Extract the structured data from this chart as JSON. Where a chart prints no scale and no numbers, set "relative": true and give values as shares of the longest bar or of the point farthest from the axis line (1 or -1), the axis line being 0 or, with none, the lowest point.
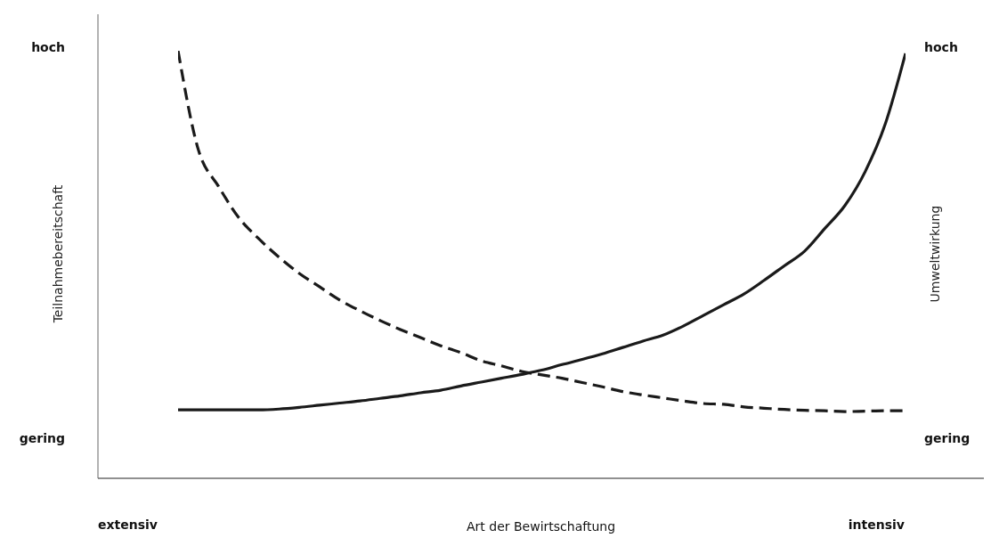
{
  "chart_data": {
    "type": "line",
    "xlabel": "Art der Bewirtschaftung",
    "relative": true,
    "categories": [
      null,
      null,
      null,
      null,
      null,
      null,
      null,
      null,
      null,
      null,
      null,
      null,
      null,
      null,
      null,
      null,
      null,
      null,
      null,
      null,
      null,
      null,
      null,
      null,
      null,
      null,
      null,
      null,
      null,
      null,
      null,
      null,
      null,
      null,
      null,
      null,
      null
    ],
    "annotations": [
      "hoch",
      "gering",
      "hoch",
      "gering",
      "extensiv",
      "intensiv",
      "Teilnahmebereitschaft",
      "Umweltwirkung"
    ],
    "grid": false,
    "legend": false,
    "marker": "none",
    "series": [
      {
        "color": "#1a1a1a",
        "line_style": "dashed",
        "values": [
          1.0,
          0.769,
          0.683,
          0.61,
          0.56,
          0.517,
          0.479,
          0.448,
          0.417,
          0.392,
          0.369,
          0.348,
          0.329,
          0.31,
          0.294,
          0.275,
          0.263,
          0.25,
          0.242,
          0.234,
          0.224,
          0.214,
          0.203,
          0.195,
          0.188,
          0.181,
          0.175,
          0.173,
          0.167,
          0.164,
          0.161,
          0.159,
          0.158,
          0.156,
          0.157,
          0.158,
          0.158
        ]
      },
      {
        "color": "#1a1a1a",
        "line_style": "solid",
        "values": [
          0.16,
          0.16,
          0.16,
          0.16,
          0.16,
          0.162,
          0.166,
          0.171,
          0.176,
          0.181,
          0.187,
          0.193,
          0.2,
          0.206,
          0.216,
          0.225,
          0.234,
          0.243,
          0.253,
          0.266,
          0.278,
          0.291,
          0.306,
          0.321,
          0.335,
          0.356,
          0.381,
          0.406,
          0.431,
          0.463,
          0.497,
          0.531,
          0.584,
          0.638,
          0.717,
          0.829,
          0.994
        ]
      }
    ]
  }
}
